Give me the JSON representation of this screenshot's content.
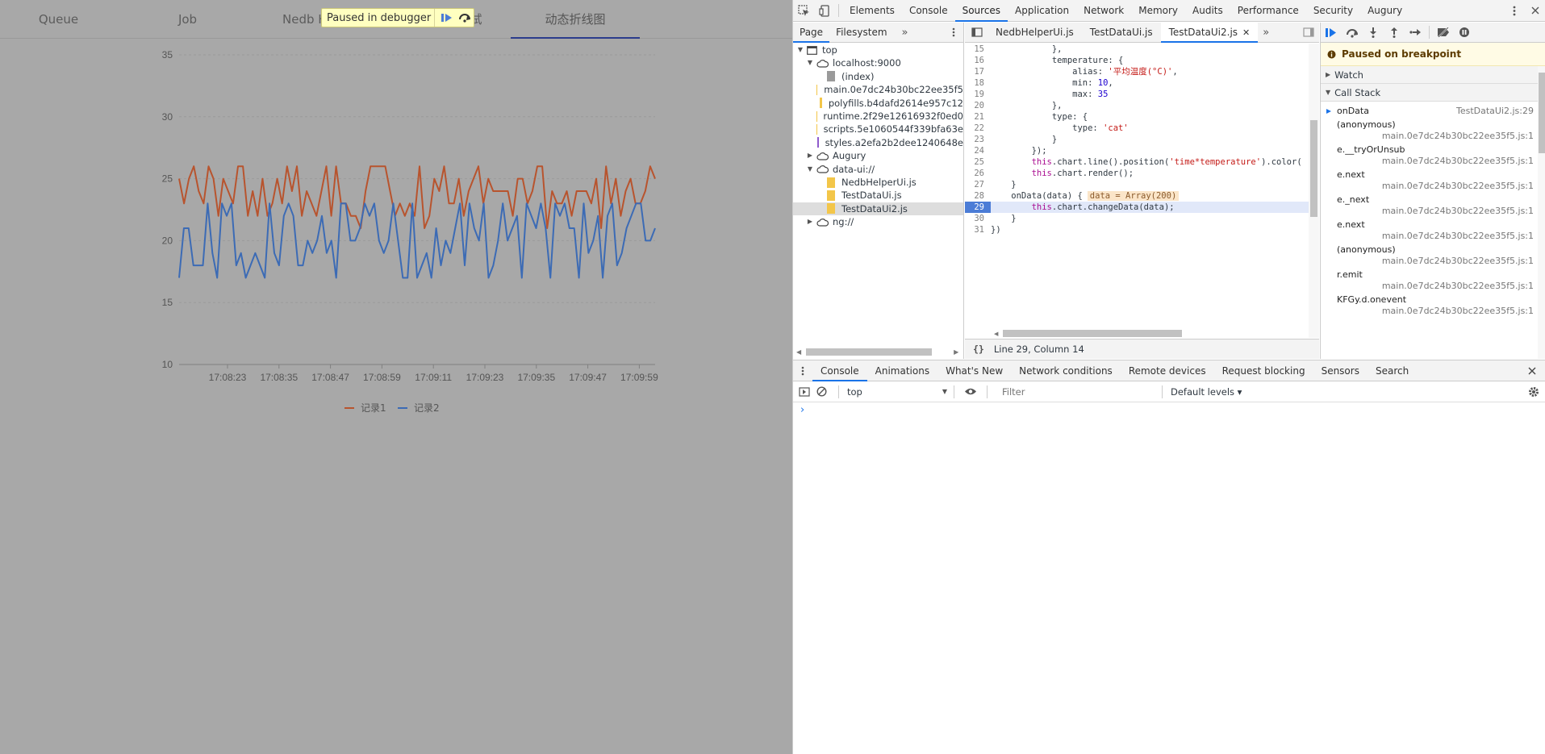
{
  "app": {
    "tabs": [
      "Queue",
      "Job",
      "Nedb H",
      "试",
      "动态折线图"
    ],
    "active_tab": "动态折线图",
    "paused_label": "Paused in debugger"
  },
  "chart_data": {
    "type": "line",
    "x_ticks": [
      "17:08:23",
      "17:08:35",
      "17:08:47",
      "17:08:59",
      "17:09:11",
      "17:09:23",
      "17:09:35",
      "17:09:47",
      "17:09:59"
    ],
    "ylim": [
      10,
      35
    ],
    "y_ticks": [
      10,
      15,
      20,
      25,
      30,
      35
    ],
    "grid": true,
    "legend_position": "bottom",
    "series": [
      {
        "name": "记录1",
        "color": "#b8542e",
        "values": [
          25,
          23,
          25,
          26,
          24,
          23,
          26,
          25,
          22,
          25,
          24,
          23,
          26,
          26,
          22,
          24,
          22,
          25,
          22,
          23,
          25,
          23,
          26,
          24,
          26,
          22,
          24,
          23,
          22,
          24,
          26,
          22,
          26,
          23,
          23,
          22,
          22,
          21,
          24,
          26,
          26,
          26,
          26,
          24,
          22,
          23,
          22,
          23,
          22,
          26,
          21,
          22,
          25,
          24,
          26,
          23,
          23,
          25,
          22,
          24,
          25,
          26,
          23,
          25,
          24,
          24,
          24,
          24,
          22,
          25,
          25,
          23,
          24,
          26,
          26,
          21,
          24,
          23,
          23,
          24,
          22,
          24,
          24,
          24,
          23,
          25,
          21,
          26,
          23,
          25,
          22,
          24,
          25,
          23,
          23,
          24,
          26,
          25
        ]
      },
      {
        "name": "记录2",
        "color": "#3c6bb5",
        "values": [
          17,
          21,
          21,
          18,
          18,
          18,
          23,
          19,
          17,
          23,
          22,
          23,
          18,
          19,
          17,
          18,
          19,
          18,
          17,
          23,
          19,
          18,
          22,
          23,
          22,
          18,
          18,
          20,
          19,
          20,
          22,
          19,
          20,
          17,
          23,
          23,
          20,
          20,
          21,
          23,
          22,
          23,
          20,
          19,
          20,
          23,
          20,
          17,
          17,
          23,
          17,
          18,
          19,
          17,
          21,
          18,
          20,
          19,
          21,
          23,
          18,
          23,
          21,
          20,
          23,
          17,
          18,
          20,
          23,
          20,
          21,
          22,
          17,
          23,
          22,
          21,
          23,
          21,
          17,
          23,
          22,
          23,
          21,
          21,
          17,
          23,
          19,
          20,
          22,
          17,
          22,
          23,
          18,
          19,
          21,
          22,
          23,
          23,
          20,
          20,
          21
        ]
      }
    ]
  },
  "devtools": {
    "panels": [
      "Elements",
      "Console",
      "Sources",
      "Application",
      "Network",
      "Memory",
      "Audits",
      "Performance",
      "Security",
      "Augury"
    ],
    "active_panel": "Sources",
    "navigator": {
      "tabs": [
        "Page",
        "Filesystem"
      ],
      "tree": [
        {
          "label": "top",
          "kind": "frame",
          "depth": 0,
          "expanded": true
        },
        {
          "label": "localhost:9000",
          "kind": "cloud",
          "depth": 1,
          "expanded": true
        },
        {
          "label": "(index)",
          "kind": "file-grey",
          "depth": 2
        },
        {
          "label": "main.0e7dc24b30bc22ee35f5",
          "kind": "file-yellow",
          "depth": 2
        },
        {
          "label": "polyfills.b4dafd2614e957c12",
          "kind": "file-yellow",
          "depth": 2
        },
        {
          "label": "runtime.2f29e12616932f0ed0",
          "kind": "file-yellow",
          "depth": 2
        },
        {
          "label": "scripts.5e1060544f339bfa63e",
          "kind": "file-yellow",
          "depth": 2
        },
        {
          "label": "styles.a2efa2b2dee1240648e",
          "kind": "file-purple",
          "depth": 2
        },
        {
          "label": "Augury",
          "kind": "cloud",
          "depth": 1,
          "expanded": false
        },
        {
          "label": "data-ui://",
          "kind": "cloud",
          "depth": 1,
          "expanded": true
        },
        {
          "label": "NedbHelperUi.js",
          "kind": "file-yellow",
          "depth": 2
        },
        {
          "label": "TestDataUi.js",
          "kind": "file-yellow",
          "depth": 2
        },
        {
          "label": "TestDataUi2.js",
          "kind": "file-yellow",
          "depth": 2,
          "selected": true
        },
        {
          "label": "ng://",
          "kind": "cloud",
          "depth": 1,
          "expanded": false
        }
      ]
    },
    "editor": {
      "tabs": [
        "NedbHelperUi.js",
        "TestDataUi.js",
        "TestDataUi2.js"
      ],
      "active_tab": "TestDataUi2.js",
      "status": "Line 29, Column 14",
      "lines": [
        {
          "n": "15",
          "html": "            },"
        },
        {
          "n": "16",
          "html": "            temperature: {"
        },
        {
          "n": "17",
          "html": "                alias: <span class=\"str\">'平均温度(°C)'</span>,"
        },
        {
          "n": "18",
          "html": "                min: <span class=\"num\">10</span>,"
        },
        {
          "n": "19",
          "html": "                max: <span class=\"num\">35</span>"
        },
        {
          "n": "20",
          "html": "            },"
        },
        {
          "n": "21",
          "html": "            type: {"
        },
        {
          "n": "22",
          "html": "                type: <span class=\"str\">'cat'</span>"
        },
        {
          "n": "23",
          "html": "            }"
        },
        {
          "n": "24",
          "html": "        });"
        },
        {
          "n": "25",
          "html": "        <span class=\"kw\">this</span>.chart.line().position(<span class=\"str\">'time*temperature'</span>).color("
        },
        {
          "n": "26",
          "html": "        <span class=\"kw\">this</span>.chart.render();"
        },
        {
          "n": "27",
          "html": "    }"
        },
        {
          "n": "28",
          "html": "    onData(data) {<span class=\"inline-val\">data = Array(200)</span>"
        },
        {
          "n": "29",
          "html": "        <span class=\"kw\">this</span>.chart.changeData(data);",
          "exec": true
        },
        {
          "n": "30",
          "html": "    }"
        },
        {
          "n": "31",
          "html": "})"
        }
      ]
    },
    "debugger": {
      "paused_message": "Paused on breakpoint",
      "sections": [
        "Watch",
        "Call Stack"
      ],
      "call_stack": [
        {
          "fn": "onData",
          "loc": "TestDataUi2.js:29",
          "current": true
        },
        {
          "fn": "(anonymous)",
          "loc": "main.0e7dc24b30bc22ee35f5.js:1"
        },
        {
          "fn": "e.__tryOrUnsub",
          "loc": "main.0e7dc24b30bc22ee35f5.js:1"
        },
        {
          "fn": "e.next",
          "loc": "main.0e7dc24b30bc22ee35f5.js:1"
        },
        {
          "fn": "e._next",
          "loc": "main.0e7dc24b30bc22ee35f5.js:1"
        },
        {
          "fn": "e.next",
          "loc": "main.0e7dc24b30bc22ee35f5.js:1"
        },
        {
          "fn": "(anonymous)",
          "loc": "main.0e7dc24b30bc22ee35f5.js:1"
        },
        {
          "fn": "r.emit",
          "loc": "main.0e7dc24b30bc22ee35f5.js:1"
        },
        {
          "fn": "KFGy.d.onevent",
          "loc": "main.0e7dc24b30bc22ee35f5.js:1"
        }
      ]
    },
    "drawer": {
      "tabs": [
        "Console",
        "Animations",
        "What's New",
        "Network conditions",
        "Remote devices",
        "Request blocking",
        "Sensors",
        "Search"
      ],
      "active_tab": "Console",
      "context": "top",
      "filter_placeholder": "Filter",
      "levels": "Default levels ▾",
      "prompt": "›"
    }
  }
}
